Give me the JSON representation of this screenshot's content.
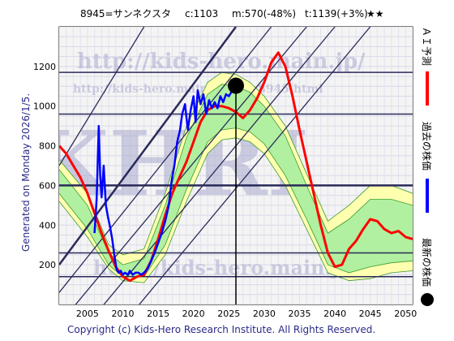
{
  "header": {
    "code_name": "8945=サンネクスタ",
    "current": "c:1103",
    "min": "m:570(-48%)",
    "target": "t:1139(+3%)",
    "stars": "★★"
  },
  "watermark": {
    "url_large": "http://kids-hero.main.jp/",
    "url_small": "http://kids-hero.main.jp/code8945.html",
    "logo": "KHRI",
    "bottom": "http://kids-hero.main.jp"
  },
  "legend": {
    "ai_forecast": "ＡＩ予測",
    "past_price": "過去の株価",
    "latest_price": "最新の株価"
  },
  "generated": "Generated on Monday 2026/1/5.",
  "copyright": "Copyright (c) Kids-Hero Research Institute. All Rights Reserved.",
  "colors": {
    "ai_forecast": "#ff0000",
    "past_price": "#0000ff",
    "latest_price": "#000000",
    "band_outer": "#ffffb0",
    "band_inner": "#b0f0a0",
    "band_lines": "#3c9a2c",
    "guide_lines": "#2a2a5a",
    "background": "#f4f4f4"
  },
  "chart_data": {
    "type": "line",
    "x_ticks": [
      2005,
      2010,
      2015,
      2020,
      2025,
      2030,
      2035,
      2040,
      2045,
      2050
    ],
    "y_ticks": [
      200,
      400,
      600,
      800,
      1000,
      1200
    ],
    "xlim": [
      2001,
      2051
    ],
    "ylim": [
      0,
      1400
    ],
    "grid": true,
    "horizontal_levels": [
      1170,
      960,
      600,
      260,
      140
    ],
    "latest_point": {
      "x": 2026.0,
      "y": 1103
    },
    "vertical_marker_x": 2026.0,
    "series": [
      {
        "name": "ＡＩ予測",
        "points": [
          [
            2001,
            800
          ],
          [
            2002,
            760
          ],
          [
            2003,
            700
          ],
          [
            2004,
            640
          ],
          [
            2005,
            560
          ],
          [
            2006,
            460
          ],
          [
            2007,
            360
          ],
          [
            2008,
            270
          ],
          [
            2009,
            190
          ],
          [
            2010,
            140
          ],
          [
            2011,
            120
          ],
          [
            2012,
            140
          ],
          [
            2013,
            150
          ],
          [
            2014,
            220
          ],
          [
            2015,
            330
          ],
          [
            2016,
            450
          ],
          [
            2017,
            560
          ],
          [
            2018,
            640
          ],
          [
            2019,
            720
          ],
          [
            2020,
            820
          ],
          [
            2021,
            920
          ],
          [
            2022,
            980
          ],
          [
            2023,
            1000
          ],
          [
            2024,
            1000
          ],
          [
            2025,
            990
          ],
          [
            2026,
            970
          ],
          [
            2027,
            940
          ],
          [
            2028,
            980
          ],
          [
            2029,
            1040
          ],
          [
            2030,
            1120
          ],
          [
            2031,
            1220
          ],
          [
            2032,
            1270
          ],
          [
            2033,
            1200
          ],
          [
            2034,
            1050
          ],
          [
            2035,
            880
          ],
          [
            2036,
            720
          ],
          [
            2037,
            560
          ],
          [
            2038,
            400
          ],
          [
            2039,
            260
          ],
          [
            2040,
            190
          ],
          [
            2041,
            200
          ],
          [
            2042,
            280
          ],
          [
            2043,
            320
          ],
          [
            2044,
            380
          ],
          [
            2045,
            430
          ],
          [
            2046,
            420
          ],
          [
            2047,
            380
          ],
          [
            2048,
            360
          ],
          [
            2049,
            370
          ],
          [
            2050,
            340
          ],
          [
            2051,
            330
          ]
        ]
      },
      {
        "name": "過去の株価",
        "points": [
          [
            2006.0,
            360
          ],
          [
            2006.3,
            530
          ],
          [
            2006.6,
            900
          ],
          [
            2006.8,
            650
          ],
          [
            2007.0,
            540
          ],
          [
            2007.3,
            700
          ],
          [
            2007.6,
            500
          ],
          [
            2007.9,
            440
          ],
          [
            2008.2,
            390
          ],
          [
            2008.5,
            330
          ],
          [
            2008.8,
            250
          ],
          [
            2009.1,
            180
          ],
          [
            2009.4,
            160
          ],
          [
            2009.7,
            170
          ],
          [
            2010.0,
            150
          ],
          [
            2010.3,
            160
          ],
          [
            2010.7,
            150
          ],
          [
            2011.0,
            170
          ],
          [
            2011.4,
            150
          ],
          [
            2011.8,
            160
          ],
          [
            2012.2,
            160
          ],
          [
            2012.6,
            150
          ],
          [
            2013.0,
            160
          ],
          [
            2013.5,
            180
          ],
          [
            2014.0,
            220
          ],
          [
            2014.5,
            260
          ],
          [
            2015.0,
            310
          ],
          [
            2015.5,
            360
          ],
          [
            2016.0,
            420
          ],
          [
            2016.5,
            500
          ],
          [
            2016.9,
            620
          ],
          [
            2017.3,
            700
          ],
          [
            2017.7,
            820
          ],
          [
            2018.1,
            880
          ],
          [
            2018.4,
            960
          ],
          [
            2018.8,
            1010
          ],
          [
            2019.2,
            880
          ],
          [
            2019.6,
            980
          ],
          [
            2020.0,
            1050
          ],
          [
            2020.3,
            920
          ],
          [
            2020.6,
            1080
          ],
          [
            2021.0,
            1010
          ],
          [
            2021.4,
            1060
          ],
          [
            2021.8,
            960
          ],
          [
            2022.2,
            1030
          ],
          [
            2022.6,
            990
          ],
          [
            2023.0,
            1020
          ],
          [
            2023.4,
            990
          ],
          [
            2023.8,
            1050
          ],
          [
            2024.2,
            1020
          ],
          [
            2024.6,
            1060
          ],
          [
            2025.0,
            1050
          ],
          [
            2025.5,
            1080
          ],
          [
            2026.0,
            1103
          ]
        ]
      }
    ],
    "band_outer_upper": [
      [
        2001,
        730
      ],
      [
        2005,
        560
      ],
      [
        2008,
        300
      ],
      [
        2010,
        250
      ],
      [
        2013,
        280
      ],
      [
        2016,
        560
      ],
      [
        2019,
        900
      ],
      [
        2022,
        1120
      ],
      [
        2024,
        1170
      ],
      [
        2026,
        1160
      ],
      [
        2028,
        1120
      ],
      [
        2030,
        1050
      ],
      [
        2033,
        900
      ],
      [
        2036,
        660
      ],
      [
        2039,
        420
      ],
      [
        2042,
        500
      ],
      [
        2045,
        600
      ],
      [
        2048,
        600
      ],
      [
        2051,
        560
      ]
    ],
    "band_outer_lower": [
      [
        2001,
        520
      ],
      [
        2005,
        340
      ],
      [
        2008,
        180
      ],
      [
        2010,
        120
      ],
      [
        2013,
        110
      ],
      [
        2016,
        250
      ],
      [
        2019,
        520
      ],
      [
        2022,
        760
      ],
      [
        2024,
        830
      ],
      [
        2026,
        840
      ],
      [
        2028,
        820
      ],
      [
        2030,
        760
      ],
      [
        2033,
        600
      ],
      [
        2036,
        380
      ],
      [
        2039,
        160
      ],
      [
        2042,
        120
      ],
      [
        2045,
        130
      ],
      [
        2048,
        160
      ],
      [
        2051,
        170
      ]
    ],
    "band_inner_upper": [
      [
        2001,
        680
      ],
      [
        2005,
        500
      ],
      [
        2008,
        260
      ],
      [
        2010,
        200
      ],
      [
        2013,
        230
      ],
      [
        2016,
        500
      ],
      [
        2019,
        840
      ],
      [
        2022,
        1060
      ],
      [
        2024,
        1110
      ],
      [
        2026,
        1100
      ],
      [
        2028,
        1070
      ],
      [
        2030,
        1000
      ],
      [
        2033,
        850
      ],
      [
        2036,
        600
      ],
      [
        2039,
        360
      ],
      [
        2042,
        430
      ],
      [
        2045,
        530
      ],
      [
        2048,
        530
      ],
      [
        2051,
        500
      ]
    ],
    "band_inner_lower": [
      [
        2001,
        560
      ],
      [
        2005,
        380
      ],
      [
        2008,
        200
      ],
      [
        2010,
        140
      ],
      [
        2013,
        140
      ],
      [
        2016,
        300
      ],
      [
        2019,
        580
      ],
      [
        2022,
        820
      ],
      [
        2024,
        880
      ],
      [
        2026,
        890
      ],
      [
        2028,
        870
      ],
      [
        2030,
        810
      ],
      [
        2033,
        650
      ],
      [
        2036,
        430
      ],
      [
        2039,
        200
      ],
      [
        2042,
        160
      ],
      [
        2045,
        190
      ],
      [
        2048,
        210
      ],
      [
        2051,
        220
      ]
    ],
    "diagonals": [
      [
        2001,
        200,
        2026,
        1400
      ],
      [
        2001,
        60,
        2031,
        1400
      ],
      [
        2001,
        -100,
        2036,
        1400
      ],
      [
        2005,
        -100,
        2040,
        1400
      ],
      [
        2001,
        700,
        2013,
        1400
      ],
      [
        2010,
        -100,
        2045,
        1400
      ]
    ]
  }
}
